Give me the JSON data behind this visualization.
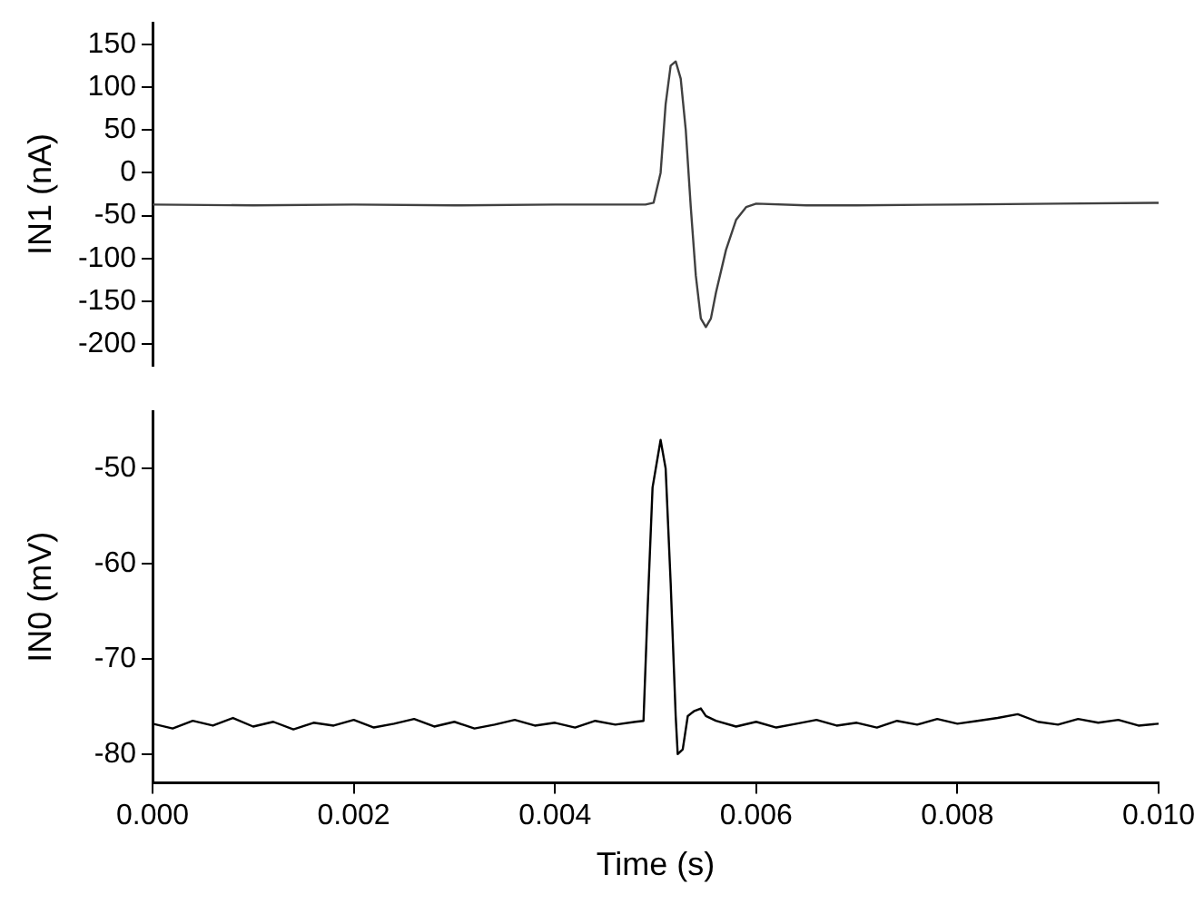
{
  "chart_data": [
    {
      "type": "line",
      "ylabel": "IN1 (nA)",
      "xlim": [
        0,
        0.01
      ],
      "ylim": [
        -225,
        175
      ],
      "yticks": [
        -200,
        -150,
        -100,
        -50,
        0,
        50,
        100,
        150
      ],
      "tick_labels": "y",
      "grid": false,
      "legend": false,
      "marker": "none",
      "line_style": "solid",
      "series": [
        {
          "color": "#404040",
          "x": [
            0,
            0.001,
            0.002,
            0.003,
            0.004,
            0.0049,
            0.00498,
            0.00505,
            0.0051,
            0.00515,
            0.0052,
            0.00525,
            0.0053,
            0.00535,
            0.0054,
            0.00545,
            0.0055,
            0.00555,
            0.0056,
            0.0057,
            0.0058,
            0.0059,
            0.006,
            0.0065,
            0.007,
            0.008,
            0.009,
            0.01
          ],
          "values": [
            -37,
            -38,
            -37,
            -38,
            -37,
            -37,
            -35,
            0,
            80,
            125,
            130,
            110,
            50,
            -40,
            -120,
            -170,
            -180,
            -170,
            -140,
            -90,
            -55,
            -40,
            -36,
            -38,
            -38,
            -37,
            -36,
            -35
          ]
        }
      ]
    },
    {
      "type": "line",
      "xlabel": "Time (s)",
      "ylabel": "IN0 (mV)",
      "xlim": [
        0,
        0.01
      ],
      "xticks": [
        {
          "value": 0,
          "label": "0.000"
        },
        {
          "value": 0.002,
          "label": "0.002"
        },
        {
          "value": 0.004,
          "label": "0.004"
        },
        {
          "value": 0.006,
          "label": "0.006"
        },
        {
          "value": 0.008,
          "label": "0.008"
        },
        {
          "value": 0.01,
          "label": "0.010"
        }
      ],
      "ylim": [
        -83,
        -44
      ],
      "yticks": [
        -80,
        -70,
        -60,
        -50
      ],
      "grid": false,
      "legend": false,
      "marker": "none",
      "line_style": "solid",
      "series": [
        {
          "color": "#000000",
          "x": [
            0,
            0.0002,
            0.0004,
            0.0006,
            0.0008,
            0.001,
            0.0012,
            0.0014,
            0.0016,
            0.0018,
            0.002,
            0.0022,
            0.0024,
            0.0026,
            0.0028,
            0.003,
            0.0032,
            0.0034,
            0.0036,
            0.0038,
            0.004,
            0.0042,
            0.0044,
            0.0046,
            0.0048,
            0.00488,
            0.00492,
            0.00497,
            0.00505,
            0.0051,
            0.00515,
            0.0052,
            0.00522,
            0.00527,
            0.00532,
            0.00538,
            0.00545,
            0.0055,
            0.0056,
            0.0058,
            0.006,
            0.0062,
            0.0064,
            0.0066,
            0.0068,
            0.007,
            0.0072,
            0.0074,
            0.0076,
            0.0078,
            0.008,
            0.0082,
            0.0084,
            0.0086,
            0.0088,
            0.009,
            0.0092,
            0.0094,
            0.0096,
            0.0098,
            0.01
          ],
          "values": [
            -76.8,
            -77.3,
            -76.5,
            -77.0,
            -76.2,
            -77.1,
            -76.6,
            -77.4,
            -76.7,
            -77.0,
            -76.4,
            -77.2,
            -76.8,
            -76.3,
            -77.1,
            -76.6,
            -77.3,
            -76.9,
            -76.4,
            -77.0,
            -76.7,
            -77.2,
            -76.5,
            -76.9,
            -76.6,
            -76.5,
            -65,
            -52,
            -47,
            -50,
            -62,
            -76,
            -80,
            -79.5,
            -76,
            -75.5,
            -75.2,
            -76,
            -76.5,
            -77.1,
            -76.6,
            -77.2,
            -76.8,
            -76.4,
            -77.0,
            -76.7,
            -77.2,
            -76.5,
            -76.9,
            -76.3,
            -76.8,
            -76.5,
            -76.2,
            -75.8,
            -76.6,
            -76.9,
            -76.3,
            -76.7,
            -76.4,
            -77.0,
            -76.8
          ]
        }
      ]
    }
  ]
}
